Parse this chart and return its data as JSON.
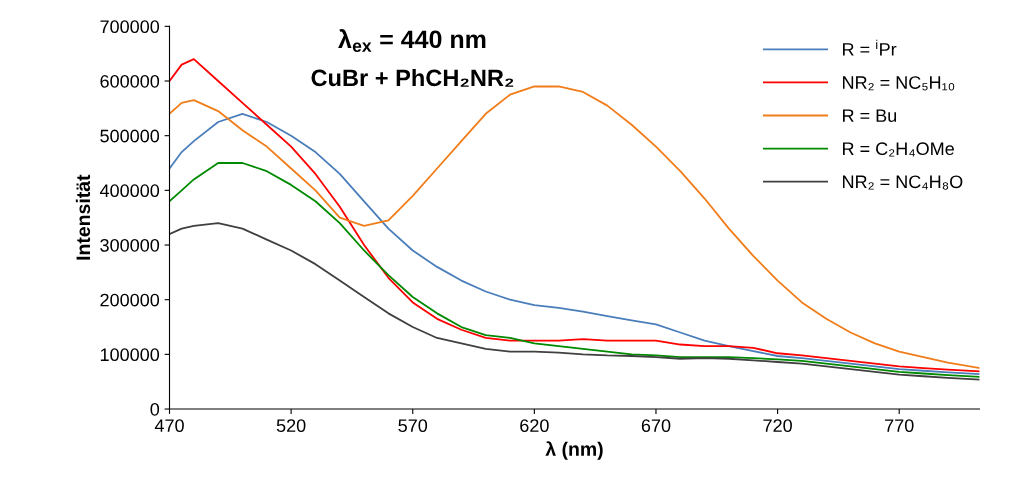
{
  "chart_data": {
    "type": "line",
    "title": "λ$_{ex}$ = 440 nm",
    "subtitle": "CuBr + PhCH₂NR₂",
    "xlabel": "λ (nm)",
    "ylabel": "Intensität",
    "x": [
      470,
      475,
      480,
      490,
      500,
      510,
      520,
      530,
      540,
      550,
      560,
      570,
      580,
      590,
      600,
      610,
      620,
      630,
      640,
      650,
      660,
      670,
      680,
      690,
      700,
      710,
      720,
      730,
      740,
      750,
      760,
      770,
      780,
      790,
      803
    ],
    "xlim": [
      470,
      803
    ],
    "xticks": [
      470,
      520,
      570,
      620,
      670,
      720,
      770
    ],
    "ylim": [
      0,
      700000
    ],
    "yticks": [
      0,
      100000,
      200000,
      300000,
      400000,
      500000,
      600000,
      700000
    ],
    "grid": false,
    "legend": "top right",
    "marker": "none",
    "line_style": "solid",
    "series": [
      {
        "name": "R = $^{i}$Pr",
        "color": "#4a7ebb",
        "values": [
          440000,
          470000,
          490000,
          525000,
          540000,
          525000,
          500000,
          470000,
          430000,
          380000,
          330000,
          290000,
          260000,
          235000,
          215000,
          200000,
          190000,
          185000,
          178000,
          170000,
          162000,
          155000,
          140000,
          125000,
          115000,
          106000,
          97000,
          93000,
          88000,
          83000,
          78000,
          73000,
          70000,
          67000,
          64000
        ]
      },
      {
        "name": "NR₂ = NC₅H₁₀",
        "color": "#ff0000",
        "values": [
          600000,
          630000,
          640000,
          600000,
          560000,
          520000,
          480000,
          430000,
          370000,
          300000,
          240000,
          195000,
          165000,
          145000,
          130000,
          125000,
          125000,
          125000,
          128000,
          125000,
          125000,
          125000,
          118000,
          115000,
          115000,
          112000,
          102000,
          98000,
          93000,
          88000,
          83000,
          78000,
          75000,
          72000,
          69000
        ]
      },
      {
        "name": "R = Bu",
        "color": "#f07d1a",
        "values": [
          540000,
          560000,
          565000,
          545000,
          510000,
          480000,
          440000,
          400000,
          350000,
          335000,
          345000,
          390000,
          440000,
          490000,
          540000,
          575000,
          590000,
          590000,
          580000,
          555000,
          520000,
          480000,
          435000,
          385000,
          330000,
          280000,
          235000,
          195000,
          165000,
          140000,
          120000,
          105000,
          95000,
          85000,
          75000
        ]
      },
      {
        "name": "R = C₂H₄OMe",
        "color": "#008a00",
        "values": [
          380000,
          400000,
          420000,
          450000,
          450000,
          435000,
          410000,
          380000,
          340000,
          290000,
          245000,
          205000,
          175000,
          150000,
          135000,
          130000,
          120000,
          115000,
          110000,
          105000,
          100000,
          98000,
          95000,
          95000,
          95000,
          93000,
          91000,
          88000,
          83000,
          78000,
          73000,
          68000,
          65000,
          62000,
          59000
        ]
      },
      {
        "name": "NR₂ = NC₄H₈O",
        "color": "#404040",
        "values": [
          320000,
          330000,
          335000,
          340000,
          330000,
          310000,
          290000,
          265000,
          235000,
          205000,
          175000,
          150000,
          130000,
          120000,
          110000,
          105000,
          105000,
          103000,
          100000,
          98000,
          97000,
          95000,
          92000,
          93000,
          92000,
          89000,
          86000,
          83000,
          78000,
          73000,
          68000,
          63000,
          60000,
          57000,
          54000
        ]
      }
    ]
  }
}
